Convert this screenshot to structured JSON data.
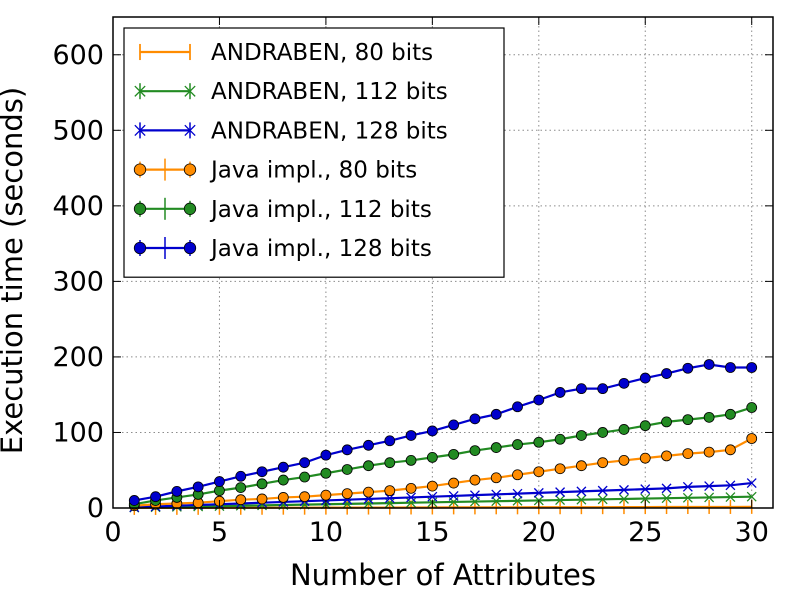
{
  "chart_data": {
    "type": "line",
    "title": "",
    "xlabel": "Number of Attributes",
    "ylabel": "Execution time (seconds)",
    "xlim": [
      0,
      31
    ],
    "ylim": [
      0,
      650
    ],
    "x_ticks": [
      0,
      5,
      10,
      15,
      20,
      25,
      30
    ],
    "y_ticks": [
      0,
      100,
      200,
      300,
      400,
      500,
      600
    ],
    "grid": true,
    "legend_position": "top-left",
    "x": [
      1,
      2,
      3,
      4,
      5,
      6,
      7,
      8,
      9,
      10,
      11,
      12,
      13,
      14,
      15,
      16,
      17,
      18,
      19,
      20,
      21,
      22,
      23,
      24,
      25,
      26,
      27,
      28,
      29,
      30
    ],
    "series": [
      {
        "name": "ANDRABEN, 80 bits",
        "color": "#ff8c00",
        "marker": "vline",
        "values": [
          0.1,
          0.1,
          0.2,
          0.2,
          0.3,
          0.3,
          0.3,
          0.4,
          0.4,
          0.5,
          0.5,
          0.6,
          0.6,
          0.7,
          0.7,
          0.8,
          0.8,
          0.9,
          0.9,
          1.0,
          1.0,
          1.1,
          1.1,
          1.2,
          1.2,
          1.3,
          1.3,
          1.4,
          1.4,
          1.5
        ]
      },
      {
        "name": "ANDRABEN, 112 bits",
        "color": "#228b22",
        "marker": "x",
        "values": [
          0.5,
          1,
          1.5,
          2,
          2.5,
          3,
          3.5,
          4,
          4.5,
          5,
          5.5,
          6,
          6.5,
          7,
          7.5,
          8,
          8.5,
          9,
          9.5,
          10,
          10.5,
          11,
          11.5,
          12,
          12.5,
          13,
          13.5,
          14,
          14.5,
          15
        ]
      },
      {
        "name": "ANDRABEN, 128 bits",
        "color": "#0000cd",
        "marker": "x",
        "values": [
          1,
          2,
          3,
          4,
          5,
          6,
          7,
          8,
          9,
          10,
          11,
          12,
          13,
          14,
          15,
          16,
          17,
          18,
          19,
          20,
          21,
          22,
          23,
          24,
          25,
          26,
          28,
          29,
          30,
          33
        ]
      },
      {
        "name": "Java impl., 80 bits",
        "color": "#ff8c00",
        "marker": "o",
        "values": [
          3,
          5,
          6,
          7,
          9,
          11,
          12,
          14,
          15,
          17,
          19,
          21,
          23,
          26,
          29,
          33,
          37,
          40,
          44,
          48,
          52,
          56,
          60,
          63,
          66,
          69,
          72,
          74,
          77,
          92
        ]
      },
      {
        "name": "Java impl., 112 bits",
        "color": "#228b22",
        "marker": "o",
        "values": [
          5,
          10,
          14,
          18,
          23,
          27,
          32,
          37,
          41,
          46,
          51,
          56,
          60,
          63,
          67,
          71,
          76,
          80,
          84,
          87,
          91,
          96,
          100,
          104,
          109,
          114,
          117,
          120,
          124,
          133
        ]
      },
      {
        "name": "Java impl., 128 bits",
        "color": "#0000cd",
        "marker": "o",
        "values": [
          10,
          15,
          22,
          28,
          35,
          42,
          48,
          54,
          60,
          70,
          77,
          83,
          89,
          96,
          102,
          110,
          118,
          124,
          134,
          143,
          153,
          158,
          158,
          165,
          172,
          178,
          185,
          190,
          186,
          186
        ]
      }
    ]
  }
}
